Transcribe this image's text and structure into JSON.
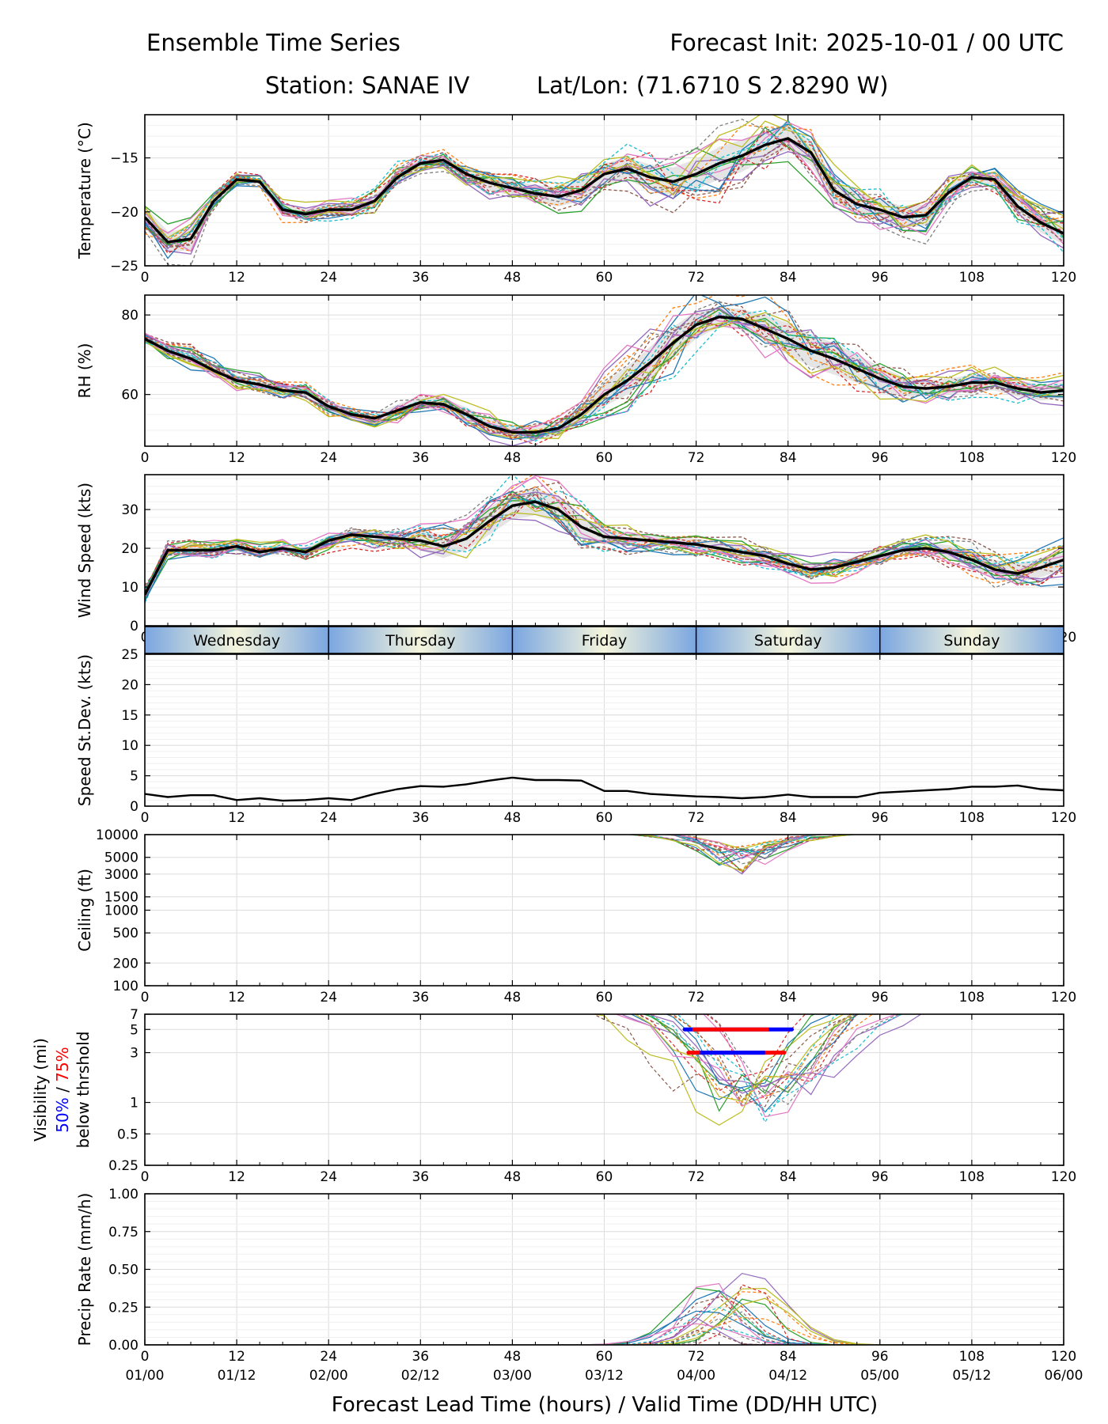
{
  "header": {
    "title_left": "Ensemble Time Series",
    "title_right": "Forecast Init: 2025-10-01 / 00 UTC",
    "station": "Station: SANAE IV",
    "latlon": "Lat/Lon: (71.6710 S 2.8290 W)"
  },
  "xlabel": "Forecast Lead Time (hours) / Valid Time (DD/HH UTC)",
  "x_ticks": [
    "0",
    "12",
    "24",
    "36",
    "48",
    "60",
    "72",
    "84",
    "96",
    "108",
    "120"
  ],
  "valid_ticks": [
    "01/00",
    "01/12",
    "02/00",
    "02/12",
    "03/00",
    "03/12",
    "04/00",
    "04/12",
    "05/00",
    "05/12",
    "06/00"
  ],
  "days": [
    "Wednesday",
    "Thursday",
    "Friday",
    "Saturday",
    "Sunday"
  ],
  "colors": {
    "mean": "#000000",
    "spread": "#d3d3d3",
    "members": [
      "#1f77b4",
      "#ff7f0e",
      "#2ca02c",
      "#d62728",
      "#9467bd",
      "#8c564b",
      "#e377c2",
      "#7f7f7f",
      "#bcbd22",
      "#17becf"
    ],
    "day_band_edge": "#7aa6e0",
    "day_band_center": "#f5f5dc",
    "vis_50": "#0000ff",
    "vis_75": "#ff0000"
  },
  "chart_data": [
    {
      "id": "temperature",
      "type": "line",
      "ylabel": "Temperature (°C)",
      "ylim": [
        -25,
        -11
      ],
      "yscale": "linear",
      "yticks": [
        -25,
        -20,
        -15
      ],
      "ytick_labels": [
        "−25",
        "−20",
        "−15"
      ],
      "x": [
        0,
        3,
        6,
        9,
        12,
        15,
        18,
        21,
        24,
        27,
        30,
        33,
        36,
        39,
        42,
        45,
        48,
        51,
        54,
        57,
        60,
        63,
        66,
        69,
        72,
        75,
        78,
        81,
        84,
        87,
        90,
        93,
        96,
        99,
        102,
        105,
        108,
        111,
        114,
        117,
        120
      ],
      "mean": [
        -20.5,
        -22.8,
        -22.5,
        -19.0,
        -17.0,
        -17.2,
        -19.8,
        -20.2,
        -19.8,
        -19.8,
        -19.0,
        -16.8,
        -15.5,
        -15.2,
        -16.5,
        -17.3,
        -17.8,
        -18.3,
        -18.6,
        -18.0,
        -16.5,
        -16.0,
        -16.8,
        -17.2,
        -16.5,
        -15.5,
        -14.8,
        -13.8,
        -13.2,
        -14.5,
        -18.0,
        -19.3,
        -19.8,
        -20.5,
        -20.3,
        -18.2,
        -16.8,
        -17.0,
        -19.5,
        -21.0,
        -22.0
      ],
      "spread_half": [
        1.0,
        1.0,
        1.0,
        0.5,
        0.3,
        0.3,
        0.5,
        0.5,
        0.5,
        0.5,
        0.6,
        0.6,
        0.5,
        0.5,
        0.6,
        0.7,
        0.7,
        0.8,
        0.9,
        1.0,
        1.0,
        1.0,
        1.2,
        1.3,
        1.4,
        1.5,
        1.5,
        1.3,
        1.0,
        1.2,
        1.0,
        1.0,
        1.0,
        1.0,
        1.0,
        0.8,
        0.6,
        0.6,
        0.8,
        0.9,
        1.0
      ],
      "member_count": 20
    },
    {
      "id": "rh",
      "type": "line",
      "ylabel": "RH (%)",
      "ylim": [
        47,
        85
      ],
      "yscale": "linear",
      "yticks": [
        60,
        80
      ],
      "ytick_labels": [
        "60",
        "80"
      ],
      "x": [
        0,
        3,
        6,
        9,
        12,
        15,
        18,
        21,
        24,
        27,
        30,
        33,
        36,
        39,
        42,
        45,
        48,
        51,
        54,
        57,
        60,
        63,
        66,
        69,
        72,
        75,
        78,
        81,
        84,
        87,
        90,
        93,
        96,
        99,
        102,
        105,
        108,
        111,
        114,
        117,
        120
      ],
      "mean": [
        74.0,
        71.0,
        69.0,
        66.0,
        63.5,
        62.5,
        61.0,
        60.5,
        57.0,
        55.0,
        54.0,
        56.0,
        58.0,
        57.5,
        55.0,
        52.0,
        50.5,
        50.5,
        51.5,
        55.0,
        60.0,
        63.5,
        68.0,
        73.0,
        77.5,
        79.5,
        79.0,
        76.5,
        74.0,
        71.0,
        69.0,
        66.5,
        64.0,
        62.0,
        61.5,
        62.0,
        63.0,
        63.0,
        61.5,
        60.5,
        61.0
      ],
      "spread_half": [
        1.0,
        1.2,
        1.5,
        1.5,
        1.3,
        1.3,
        1.3,
        1.3,
        1.3,
        1.2,
        1.2,
        1.5,
        1.5,
        1.5,
        1.8,
        1.8,
        1.8,
        1.8,
        2.0,
        2.5,
        3.0,
        3.5,
        4.0,
        4.0,
        3.5,
        2.5,
        2.5,
        3.5,
        4.0,
        4.0,
        4.0,
        3.5,
        3.0,
        2.5,
        2.0,
        2.0,
        2.0,
        2.0,
        2.0,
        2.0,
        2.0
      ],
      "member_count": 20
    },
    {
      "id": "wind_speed",
      "type": "line",
      "ylabel": "Wind Speed (kts)",
      "ylim": [
        0,
        39
      ],
      "yscale": "linear",
      "yticks": [
        0,
        10,
        20,
        30
      ],
      "ytick_labels": [
        "0",
        "10",
        "20",
        "30"
      ],
      "x": [
        0,
        3,
        6,
        9,
        12,
        15,
        18,
        21,
        24,
        27,
        30,
        33,
        36,
        39,
        42,
        45,
        48,
        51,
        54,
        57,
        60,
        63,
        66,
        69,
        72,
        75,
        78,
        81,
        84,
        87,
        90,
        93,
        96,
        99,
        102,
        105,
        108,
        111,
        114,
        117,
        120
      ],
      "mean": [
        8.0,
        19.5,
        19.5,
        19.5,
        20.5,
        19.0,
        20.0,
        19.0,
        22.0,
        23.5,
        23.0,
        22.5,
        22.0,
        20.5,
        22.5,
        27.0,
        31.0,
        32.0,
        30.0,
        25.5,
        23.0,
        22.5,
        22.0,
        21.5,
        21.0,
        20.0,
        19.0,
        18.0,
        16.0,
        14.5,
        15.0,
        16.5,
        18.0,
        19.5,
        20.0,
        19.0,
        17.0,
        14.5,
        13.5,
        15.0,
        17.0
      ],
      "spread_half": [
        1.5,
        1.5,
        1.5,
        1.2,
        1.2,
        1.2,
        1.2,
        1.2,
        1.3,
        1.3,
        1.5,
        2.0,
        2.5,
        3.0,
        3.0,
        3.5,
        3.5,
        3.5,
        3.5,
        3.0,
        2.0,
        1.8,
        1.5,
        1.5,
        1.5,
        1.5,
        1.5,
        1.5,
        1.5,
        1.5,
        1.5,
        1.5,
        1.5,
        1.5,
        1.5,
        1.8,
        2.0,
        2.5,
        2.5,
        2.5,
        2.5
      ],
      "member_count": 20
    },
    {
      "id": "speed_stdev",
      "type": "line",
      "ylabel": "Speed St.Dev. (kts)",
      "ylim": [
        0,
        25
      ],
      "yscale": "linear",
      "yticks": [
        0,
        5,
        10,
        15,
        20,
        25
      ],
      "ytick_labels": [
        "0",
        "5",
        "10",
        "15",
        "20",
        "25"
      ],
      "x": [
        0,
        3,
        6,
        9,
        12,
        15,
        18,
        21,
        24,
        27,
        30,
        33,
        36,
        39,
        42,
        45,
        48,
        51,
        54,
        57,
        60,
        63,
        66,
        69,
        72,
        75,
        78,
        81,
        84,
        87,
        90,
        93,
        96,
        99,
        102,
        105,
        108,
        111,
        114,
        117,
        120
      ],
      "mean": [
        2.0,
        1.5,
        1.8,
        1.8,
        1.0,
        1.3,
        0.9,
        1.0,
        1.3,
        1.0,
        2.0,
        2.8,
        3.3,
        3.2,
        3.6,
        4.2,
        4.7,
        4.3,
        4.3,
        4.2,
        2.5,
        2.5,
        2.0,
        1.8,
        1.6,
        1.5,
        1.3,
        1.5,
        1.9,
        1.5,
        1.5,
        1.5,
        2.2,
        2.4,
        2.6,
        2.8,
        3.2,
        3.2,
        3.4,
        2.8,
        2.6
      ]
    },
    {
      "id": "ceiling",
      "type": "line",
      "ylabel": "Ceiling (ft)",
      "ylim": [
        100,
        10000
      ],
      "yscale": "log",
      "yticks": [
        100,
        200,
        500,
        1000,
        1500,
        3000,
        5000,
        10000
      ],
      "ytick_labels": [
        "100",
        "200",
        "500",
        "1000",
        "1500",
        "3000",
        "5000",
        "10000"
      ],
      "x": [
        0,
        3,
        6,
        9,
        12,
        15,
        18,
        21,
        24,
        27,
        30,
        33,
        36,
        39,
        42,
        45,
        48,
        51,
        54,
        57,
        60,
        63,
        66,
        69,
        72,
        75,
        78,
        81,
        84,
        87,
        90,
        93,
        96,
        99,
        102,
        105,
        108,
        111,
        114,
        117,
        120
      ],
      "member_count": 20
    },
    {
      "id": "visibility",
      "type": "line",
      "ylabel": "Visibility (mi)",
      "ylim": [
        0.25,
        7
      ],
      "yscale": "log",
      "yticks": [
        0.25,
        0.5,
        1,
        3,
        5,
        7
      ],
      "ytick_labels": [
        "0.25",
        "0.5",
        "1",
        "3",
        "5",
        "7"
      ],
      "label_50": "50%",
      "label_sep": " / ",
      "label_75": "75%",
      "label_below": "below thrshold",
      "threshold_bars": [
        {
          "y": 5,
          "start": 70.5,
          "end": 84.5,
          "inner_start": 71.5,
          "inner_end": 81.5,
          "edge_color": "#0000ff",
          "center_color": "#ff0000"
        },
        {
          "y": 3,
          "start": 71.0,
          "end": 83.5,
          "inner_start": 72.5,
          "inner_end": 81.0,
          "edge_color": "#ff0000",
          "center_color": "#0000ff"
        }
      ],
      "x": [
        0,
        3,
        6,
        9,
        12,
        15,
        18,
        21,
        24,
        27,
        30,
        33,
        36,
        39,
        42,
        45,
        48,
        51,
        54,
        57,
        60,
        63,
        66,
        69,
        72,
        75,
        78,
        81,
        84,
        87,
        90,
        93,
        96,
        99,
        102,
        105,
        108,
        111,
        114,
        117,
        120
      ],
      "member_count": 20
    },
    {
      "id": "precip_rate",
      "type": "line",
      "ylabel": "Precip Rate (mm/h)",
      "ylim": [
        0,
        1.0
      ],
      "yscale": "linear",
      "yticks": [
        0,
        0.25,
        0.5,
        0.75,
        1.0
      ],
      "ytick_labels": [
        "0.00",
        "0.25",
        "0.50",
        "0.75",
        "1.00"
      ],
      "x": [
        0,
        3,
        6,
        9,
        12,
        15,
        18,
        21,
        24,
        27,
        30,
        33,
        36,
        39,
        42,
        45,
        48,
        51,
        54,
        57,
        60,
        63,
        66,
        69,
        72,
        75,
        78,
        81,
        84,
        87,
        90,
        93,
        96,
        99,
        102,
        105,
        108,
        111,
        114,
        117,
        120
      ],
      "member_count": 20
    }
  ]
}
